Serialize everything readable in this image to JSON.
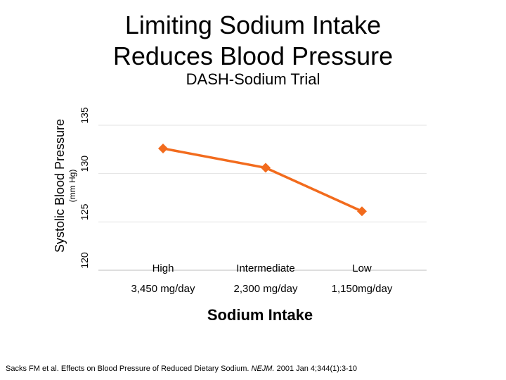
{
  "header": {
    "title_line1": "Limiting Sodium Intake",
    "title_line2": "Reduces Blood Pressure",
    "subtitle": "DASH-Sodium Trial"
  },
  "chart_data": {
    "type": "line",
    "title": "DASH-Sodium Trial",
    "ylabel": "Systolic Blood Pressure",
    "ylabel_units": "(mm Hg)",
    "xlabel": "Sodium Intake",
    "categories": [
      "High",
      "Intermediate",
      "Low"
    ],
    "category_sublabels": [
      "3,450 mg/day",
      "2,300 mg/day",
      "1,150mg/day"
    ],
    "series": [
      {
        "name": "Systolic Blood Pressure",
        "values": [
          132.6,
          130.6,
          126.1
        ],
        "color": "#f26b1d"
      }
    ],
    "ylim": [
      120,
      135
    ],
    "yticks": [
      120,
      125,
      130,
      135
    ],
    "grid": true
  },
  "footer": {
    "citation_prefix": "Sacks FM et al. Effects on Blood Pressure of Reduced Dietary Sodium.",
    "journal": "NEJM.",
    "citation_suffix": "2001 Jan 4;344(1):3-10"
  }
}
